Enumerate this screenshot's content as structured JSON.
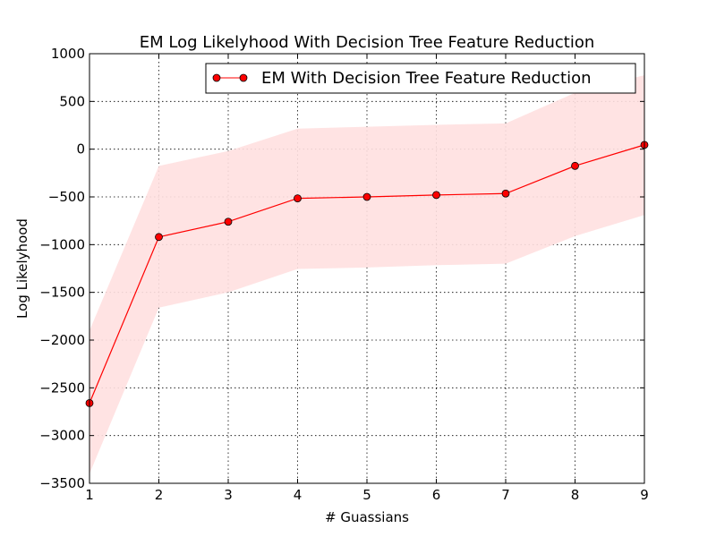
{
  "chart_data": {
    "type": "line",
    "title": "EM Log Likelyhood With Decision Tree Feature Reduction",
    "xlabel": "# Guassians",
    "ylabel": "Log Likelyhood",
    "xlim": [
      1,
      9
    ],
    "ylim": [
      -3500,
      1000
    ],
    "x_ticks": [
      "1",
      "2",
      "3",
      "4",
      "5",
      "6",
      "7",
      "8",
      "9"
    ],
    "y_ticks": [
      "1000",
      "500",
      "0",
      "−500",
      "−1000",
      "−1500",
      "−2000",
      "−2500",
      "−3000",
      "−3500"
    ],
    "x_tick_values": [
      1,
      2,
      3,
      4,
      5,
      6,
      7,
      8,
      9
    ],
    "y_tick_values": [
      1000,
      500,
      0,
      -500,
      -1000,
      -1500,
      -2000,
      -2500,
      -3000,
      -3500
    ],
    "grid": true,
    "legend_position": "top-right",
    "series": [
      {
        "name": "EM With Decision Tree Feature Reduction",
        "color": "#ff0000",
        "marker": "circle",
        "x": [
          1,
          2,
          3,
          4,
          5,
          6,
          7,
          8,
          9
        ],
        "y": [
          -2660,
          -920,
          -760,
          -515,
          -500,
          -480,
          -465,
          -175,
          45
        ],
        "band_upper": [
          -1900,
          -175,
          -20,
          215,
          235,
          255,
          270,
          590,
          775
        ],
        "band_lower": [
          -3400,
          -1660,
          -1500,
          -1255,
          -1240,
          -1215,
          -1200,
          -910,
          -690
        ],
        "band_color": "#ffe0e0"
      }
    ]
  }
}
